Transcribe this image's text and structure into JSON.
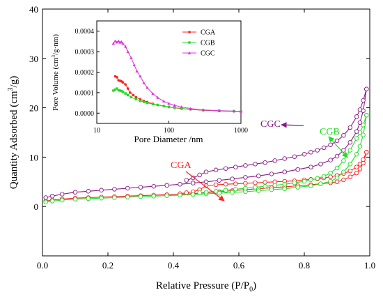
{
  "chart_data": [
    {
      "type": "scatter",
      "xlabel": "Relative Pressure (P/P",
      "xlabel_sub": "0",
      "xlabel_close": ")",
      "ylabel": "Quantity Adsorbed (cm",
      "ylabel_sup": "3",
      "ylabel_close": "/g)",
      "xlim": [
        0.0,
        1.0
      ],
      "ylim": [
        -10,
        40
      ],
      "xticks": [
        "0.0",
        "0.2",
        "0.4",
        "0.6",
        "0.8",
        "1.0"
      ],
      "yticks": [
        "0",
        "10",
        "20",
        "30",
        "40"
      ],
      "grid": false,
      "series": [
        {
          "name": "CGA",
          "color": "#ff2020",
          "adsorption": {
            "x": [
              0.01,
              0.03,
              0.06,
              0.1,
              0.14,
              0.18,
              0.22,
              0.26,
              0.3,
              0.34,
              0.38,
              0.42,
              0.46,
              0.5,
              0.54,
              0.58,
              0.62,
              0.66,
              0.7,
              0.74,
              0.78,
              0.82,
              0.85,
              0.88,
              0.9,
              0.92,
              0.94,
              0.96,
              0.97,
              0.98,
              0.99
            ],
            "y": [
              1.1,
              1.3,
              1.5,
              1.7,
              1.8,
              1.9,
              2.0,
              2.1,
              2.2,
              2.3,
              2.4,
              2.5,
              2.6,
              2.8,
              3.0,
              3.2,
              3.4,
              3.6,
              3.8,
              4.0,
              4.2,
              4.4,
              4.6,
              4.8,
              5.0,
              5.4,
              6.0,
              6.8,
              7.6,
              8.8,
              11.0
            ]
          },
          "desorption": {
            "x": [
              0.99,
              0.98,
              0.97,
              0.96,
              0.94,
              0.92,
              0.9,
              0.88,
              0.86,
              0.84,
              0.82,
              0.8,
              0.77,
              0.74,
              0.71,
              0.68,
              0.65,
              0.62,
              0.59,
              0.56,
              0.53,
              0.5,
              0.48,
              0.46,
              0.44,
              0.42
            ],
            "y": [
              11.0,
              9.5,
              8.6,
              8.0,
              7.2,
              6.7,
              6.3,
              6.0,
              5.8,
              5.6,
              5.5,
              5.4,
              5.2,
              5.1,
              5.0,
              4.9,
              4.8,
              4.7,
              4.6,
              4.5,
              4.4,
              4.2,
              3.4,
              3.0,
              2.8,
              2.6
            ]
          }
        },
        {
          "name": "CGB",
          "color": "#20dd20",
          "adsorption": {
            "x": [
              0.01,
              0.03,
              0.06,
              0.1,
              0.14,
              0.18,
              0.22,
              0.26,
              0.3,
              0.34,
              0.38,
              0.42,
              0.46,
              0.5,
              0.54,
              0.58,
              0.62,
              0.66,
              0.7,
              0.74,
              0.78,
              0.82,
              0.85,
              0.88,
              0.9,
              0.92,
              0.94,
              0.96,
              0.97,
              0.98,
              0.99
            ],
            "y": [
              0.9,
              1.1,
              1.3,
              1.5,
              1.6,
              1.7,
              1.8,
              1.9,
              2.0,
              2.1,
              2.2,
              2.3,
              2.4,
              2.55,
              2.7,
              2.85,
              3.0,
              3.2,
              3.4,
              3.6,
              3.9,
              4.2,
              4.6,
              5.1,
              5.8,
              7.0,
              8.6,
              10.6,
              12.2,
              14.5,
              18.5
            ]
          },
          "desorption": {
            "x": [
              0.99,
              0.98,
              0.97,
              0.96,
              0.94,
              0.92,
              0.9,
              0.88,
              0.86,
              0.84,
              0.82,
              0.8,
              0.77,
              0.74,
              0.71,
              0.68,
              0.65,
              0.62,
              0.59,
              0.56,
              0.53,
              0.5,
              0.48
            ],
            "y": [
              18.5,
              16.5,
              15.0,
              13.8,
              11.4,
              9.3,
              7.8,
              6.8,
              6.1,
              5.7,
              5.4,
              5.1,
              4.8,
              4.5,
              4.3,
              4.1,
              3.9,
              3.7,
              3.5,
              3.3,
              3.1,
              2.9,
              2.8
            ]
          }
        },
        {
          "name": "CGC",
          "color": "#8a1a8a",
          "adsorption": {
            "x": [
              0.01,
              0.03,
              0.06,
              0.1,
              0.14,
              0.18,
              0.22,
              0.26,
              0.3,
              0.34,
              0.38,
              0.42,
              0.46,
              0.5,
              0.54,
              0.58,
              0.62,
              0.66,
              0.7,
              0.74,
              0.78,
              0.82,
              0.85,
              0.88,
              0.9,
              0.92,
              0.94,
              0.96,
              0.97,
              0.98,
              0.99
            ],
            "y": [
              1.8,
              2.1,
              2.5,
              2.9,
              3.1,
              3.3,
              3.5,
              3.7,
              3.9,
              4.1,
              4.3,
              4.5,
              4.75,
              5.0,
              5.3,
              5.6,
              5.9,
              6.2,
              6.6,
              7.0,
              7.5,
              8.0,
              8.6,
              9.4,
              10.2,
              11.4,
              13.0,
              15.2,
              17.0,
              19.4,
              23.8
            ]
          },
          "desorption": {
            "x": [
              0.99,
              0.98,
              0.97,
              0.96,
              0.94,
              0.92,
              0.9,
              0.88,
              0.86,
              0.84,
              0.82,
              0.8,
              0.77,
              0.74,
              0.71,
              0.68,
              0.65,
              0.62,
              0.59,
              0.56,
              0.53,
              0.5,
              0.48,
              0.46,
              0.44
            ],
            "y": [
              23.8,
              21.5,
              19.6,
              18.2,
              16.0,
              14.4,
              13.3,
              12.5,
              11.9,
              11.4,
              11.0,
              10.6,
              10.1,
              9.7,
              9.3,
              8.9,
              8.6,
              8.3,
              8.0,
              7.7,
              7.4,
              7.0,
              6.4,
              5.8,
              5.3
            ]
          }
        }
      ],
      "annotations": [
        {
          "text": "CGA",
          "color": "#ff2020"
        },
        {
          "text": "CGB",
          "color": "#20dd20"
        },
        {
          "text": "CGC",
          "color": "#8a1a8a"
        }
      ]
    },
    {
      "type": "line",
      "xlabel": "Pore Diameter /nm",
      "ylabel": "Pore Volume (cm",
      "ylabel_sup": "3",
      "ylabel_close": "/g·nm)",
      "xscale": "log",
      "xlim": [
        10,
        1000
      ],
      "ylim": [
        -5e-05,
        0.00045
      ],
      "xticks": [
        "10",
        "100",
        "1000"
      ],
      "yticks": [
        "0.0000",
        "0.0001",
        "0.0002",
        "0.0003",
        "0.0004"
      ],
      "legend": "top-right",
      "series": [
        {
          "name": "CGA",
          "color": "#ff2020",
          "x": [
            18,
            19,
            20,
            21,
            22,
            23,
            25,
            27,
            29,
            32,
            35,
            40,
            45,
            50,
            60,
            70,
            85,
            100,
            120,
            150,
            200,
            300,
            500,
            800,
            1000
          ],
          "y": [
            0.00018,
            0.000175,
            0.00016,
            0.000158,
            0.000155,
            0.00015,
            0.00014,
            0.00012,
            0.0001,
            8.8e-05,
            7.8e-05,
            6.8e-05,
            6e-05,
            5.4e-05,
            4.6e-05,
            4e-05,
            3.4e-05,
            3e-05,
            2.6e-05,
            2.2e-05,
            1.8e-05,
            1.4e-05,
            1.1e-05,
            9e-06,
            8e-06
          ]
        },
        {
          "name": "CGB",
          "color": "#20dd20",
          "x": [
            17,
            18,
            19,
            20,
            21,
            22,
            23,
            25,
            27,
            30,
            35,
            40,
            45,
            50,
            60,
            70,
            85,
            100,
            120,
            150,
            200,
            300,
            500,
            800,
            1000
          ],
          "y": [
            0.00011,
            0.000115,
            0.00012,
            0.000112,
            0.00011,
            0.000108,
            0.000104,
            9.6e-05,
            8.8e-05,
            7.8e-05,
            6.8e-05,
            6e-05,
            5.5e-05,
            5e-05,
            4.4e-05,
            4e-05,
            3.5e-05,
            3.1e-05,
            2.7e-05,
            2.3e-05,
            1.9e-05,
            1.5e-05,
            1.2e-05,
            1e-05,
            9e-06
          ]
        },
        {
          "name": "CGC",
          "color": "#e030e0",
          "x": [
            17,
            18,
            19,
            20,
            21,
            22,
            23,
            25,
            27,
            30,
            33,
            36,
            40,
            45,
            50,
            60,
            70,
            85,
            100,
            120,
            150,
            200,
            300,
            500,
            800,
            1000
          ],
          "y": [
            0.00034,
            0.000352,
            0.000346,
            0.000352,
            0.000345,
            0.000348,
            0.00034,
            0.000325,
            0.0003,
            0.00027,
            0.000235,
            0.000205,
            0.00018,
            0.000148,
            0.000125,
            9.5e-05,
            7.6e-05,
            5.8e-05,
            4.7e-05,
            3.8e-05,
            3e-05,
            2.2e-05,
            1.6e-05,
            1.2e-05,
            1e-05,
            9e-06
          ]
        }
      ]
    }
  ]
}
